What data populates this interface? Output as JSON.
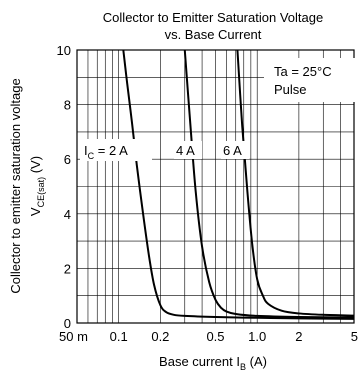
{
  "chart_data": {
    "type": "line",
    "title_line1": "Collector to Emitter Saturation Voltage",
    "title_line2": "vs. Base Current",
    "xlabel": {
      "main": "Base current  I",
      "sub": "B",
      "unit": "  (A)"
    },
    "ylabel": {
      "line1": "Collector to emitter saturation voltage",
      "main": "V",
      "sub": "CE(sat)",
      "unit": "  (V)"
    },
    "x_scale": "log",
    "xlim": [
      0.05,
      5
    ],
    "ylim": [
      0,
      10
    ],
    "grid": true,
    "x_tick_labels": [
      "50 m",
      "0.1",
      "0.2",
      "0.5",
      "1.0",
      "2",
      "5"
    ],
    "x_ticks": [
      0.05,
      0.1,
      0.2,
      0.5,
      1.0,
      2,
      5
    ],
    "y_ticks": [
      0,
      2,
      4,
      6,
      8,
      10
    ],
    "y_tick_labels": [
      "0",
      "2",
      "4",
      "6",
      "8",
      "10"
    ],
    "conditions": [
      "Ta = 25°C",
      "Pulse"
    ],
    "series": [
      {
        "name": "I_C = 2 A",
        "x": [
          0.108,
          0.115,
          0.125,
          0.135,
          0.15,
          0.165,
          0.18,
          0.2,
          0.22,
          0.25,
          0.3,
          0.5,
          1,
          2,
          5
        ],
        "y": [
          10,
          8.8,
          7.3,
          5.8,
          4.0,
          2.5,
          1.4,
          0.65,
          0.4,
          0.3,
          0.26,
          0.22,
          0.19,
          0.17,
          0.15
        ]
      },
      {
        "name": "4 A",
        "x": [
          0.3,
          0.33,
          0.36,
          0.4,
          0.45,
          0.5,
          0.55,
          0.6,
          0.7,
          1,
          2,
          5
        ],
        "y": [
          10,
          7.2,
          4.8,
          2.8,
          1.5,
          0.85,
          0.55,
          0.42,
          0.33,
          0.26,
          0.22,
          0.2
        ]
      },
      {
        "name": "6 A",
        "x": [
          0.72,
          0.78,
          0.85,
          0.92,
          1.0,
          1.1,
          1.2,
          1.5,
          2,
          3,
          5
        ],
        "y": [
          10,
          7.2,
          4.8,
          2.9,
          1.6,
          1.0,
          0.7,
          0.45,
          0.35,
          0.3,
          0.27
        ]
      }
    ],
    "series_labels": {
      "ic_main": "I",
      "ic_sub": "C",
      "ic_rest": " = 2 A",
      "s2": "4 A",
      "s3": "6 A"
    }
  }
}
